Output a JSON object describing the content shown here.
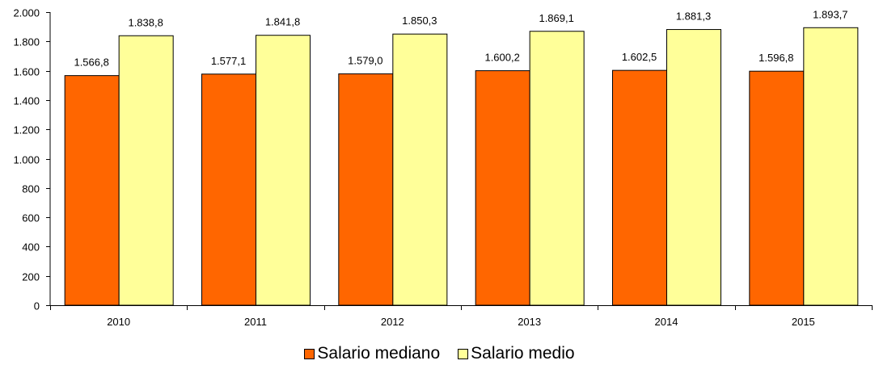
{
  "chart_data": {
    "type": "bar",
    "categories": [
      "2010",
      "2011",
      "2012",
      "2013",
      "2014",
      "2015"
    ],
    "series": [
      {
        "name": "Salario mediano",
        "color": "#FF6600",
        "values": [
          1566.8,
          1577.1,
          1579.0,
          1600.2,
          1602.5,
          1596.8
        ],
        "labels": [
          "1.566,8",
          "1.577,1",
          "1.579,0",
          "1.600,2",
          "1.602,5",
          "1.596,8"
        ]
      },
      {
        "name": "Salario medio",
        "color": "#FFFF99",
        "values": [
          1838.8,
          1841.8,
          1850.3,
          1869.1,
          1881.3,
          1893.7
        ],
        "labels": [
          "1.838,8",
          "1.841,8",
          "1.850,3",
          "1.869,1",
          "1.881,3",
          "1.893,7"
        ]
      }
    ],
    "ylim": [
      0,
      2000
    ],
    "yticks": [
      0,
      200,
      400,
      600,
      800,
      1000,
      1200,
      1400,
      1600,
      1800,
      2000
    ],
    "ytick_labels": [
      "0",
      "200",
      "400",
      "600",
      "800",
      "1.000",
      "1.200",
      "1.400",
      "1.600",
      "1.800",
      "2.000"
    ],
    "grid": false,
    "legend_position": "bottom-center",
    "title": "",
    "xlabel": "",
    "ylabel": ""
  }
}
